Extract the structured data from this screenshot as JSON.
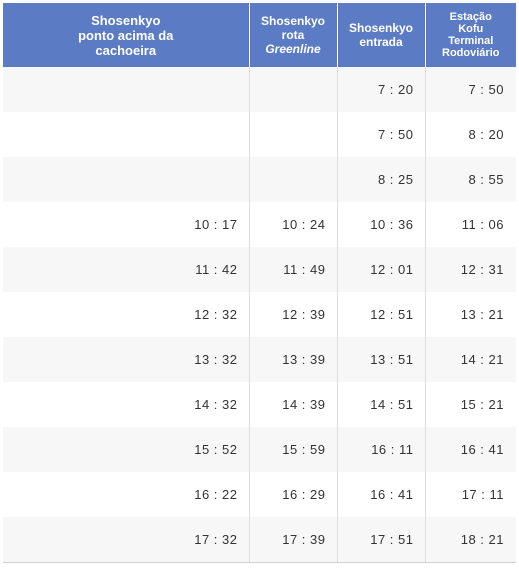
{
  "headers": [
    {
      "lines": [
        "Shosenkyo",
        "ponto acima da",
        "cachoeira"
      ],
      "italic_line": null
    },
    {
      "lines": [
        "Shosenkyo",
        "rota",
        "Greenline"
      ],
      "italic_line": 2
    },
    {
      "lines": [
        "Shosenkyo",
        "entrada"
      ],
      "italic_line": null
    },
    {
      "lines": [
        "Estação",
        "Kofu",
        "Terminal",
        "Rodoviário"
      ],
      "italic_line": null
    }
  ],
  "rows": [
    [
      "",
      "",
      "7 : 20",
      "7 : 50"
    ],
    [
      "",
      "",
      "7 : 50",
      "8 : 20"
    ],
    [
      "",
      "",
      "8 : 25",
      "8 : 55"
    ],
    [
      "10 : 17",
      "10 : 24",
      "10 : 36",
      "11 : 06"
    ],
    [
      "11 : 42",
      "11 : 49",
      "12 : 01",
      "12 : 31"
    ],
    [
      "12 : 32",
      "12 : 39",
      "12 : 51",
      "13 : 21"
    ],
    [
      "13 : 32",
      "13 : 39",
      "13 : 51",
      "14 : 21"
    ],
    [
      "14 : 32",
      "14 : 39",
      "14 : 51",
      "15 : 21"
    ],
    [
      "15 : 52",
      "15 : 59",
      "16 : 11",
      "16 : 41"
    ],
    [
      "16 : 22",
      "16 : 29",
      "16 : 41",
      "17 : 11"
    ],
    [
      "17 : 32",
      "17 : 39",
      "17 : 51",
      "18 : 21"
    ]
  ],
  "colors": {
    "header_bg": "#5b7bc5",
    "header_text": "#ffffff",
    "row_alt_bg": "#f7f7f7",
    "row_bg": "#ffffff",
    "cell_text": "#333333"
  }
}
